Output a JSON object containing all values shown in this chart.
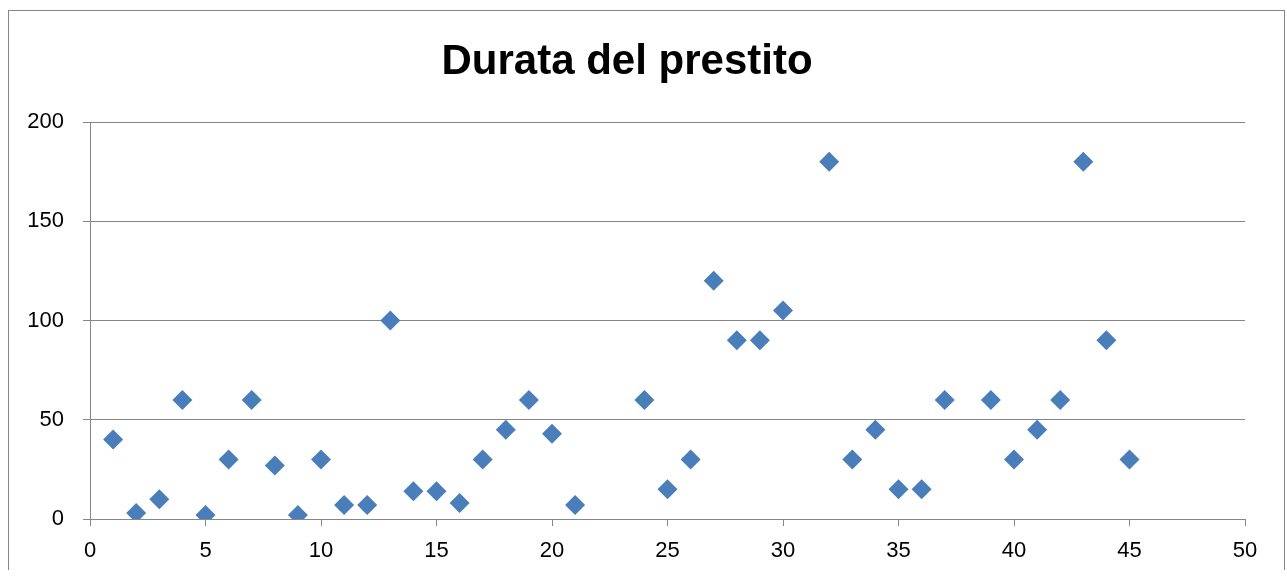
{
  "chart_data": {
    "type": "scatter",
    "title": "Durata del prestito",
    "x": [
      1,
      2,
      3,
      4,
      5,
      6,
      7,
      8,
      9,
      10,
      11,
      12,
      13,
      14,
      15,
      16,
      17,
      18,
      19,
      20,
      21,
      24,
      25,
      26,
      27,
      28,
      29,
      30,
      32,
      33,
      34,
      35,
      36,
      37,
      39,
      40,
      41,
      42,
      43,
      44,
      45
    ],
    "values": [
      40,
      3,
      10,
      60,
      2,
      30,
      60,
      27,
      2,
      30,
      7,
      7,
      100,
      14,
      14,
      8,
      30,
      45,
      60,
      43,
      7,
      60,
      15,
      30,
      120,
      90,
      90,
      105,
      180,
      30,
      45,
      15,
      15,
      60,
      60,
      30,
      45,
      60,
      180,
      90,
      30
    ],
    "color": "#4a7ebb",
    "marker": "diamond",
    "xlim": [
      0,
      50
    ],
    "xticks": [
      0,
      5,
      10,
      15,
      20,
      25,
      30,
      35,
      40,
      45,
      50
    ],
    "ylim": [
      0,
      200
    ],
    "yticks": [
      0,
      50,
      100,
      150,
      200
    ],
    "grid": "y"
  }
}
